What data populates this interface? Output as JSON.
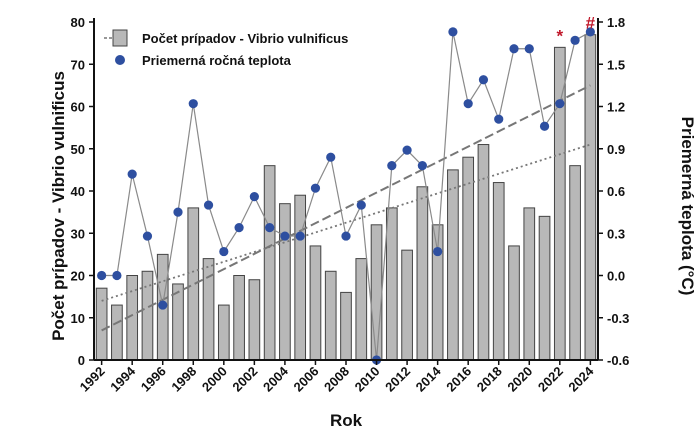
{
  "chart_data": {
    "type": "bar+line",
    "xlabel": "Rok",
    "y_left_label": "Počet prípadov - Vibrio vulnificus",
    "y_right_label": "Priemerná teplota (°C)",
    "y_left_lim": [
      0,
      80
    ],
    "y_left_ticks": [
      0,
      10,
      20,
      30,
      40,
      50,
      60,
      70,
      80
    ],
    "y_right_lim": [
      -0.6,
      1.8
    ],
    "y_right_ticks": [
      "-0.6",
      "-0.3",
      "0.0",
      "0.3",
      "0.6",
      "0.9",
      "1.2",
      "1.5",
      "1.8"
    ],
    "x_tick_labels": [
      "1992",
      "1994",
      "1996",
      "1998",
      "2000",
      "2002",
      "2004",
      "2006",
      "2008",
      "2010",
      "2012",
      "2014",
      "2016",
      "2018",
      "2020",
      "2022",
      "2024"
    ],
    "years": [
      1992,
      1993,
      1994,
      1995,
      1996,
      1997,
      1998,
      1999,
      2000,
      2001,
      2002,
      2003,
      2004,
      2005,
      2006,
      2007,
      2008,
      2009,
      2010,
      2011,
      2012,
      2013,
      2014,
      2015,
      2016,
      2017,
      2018,
      2019,
      2020,
      2021,
      2022,
      2023,
      2024
    ],
    "series": [
      {
        "name": "Počet prípadov - Vibrio vulnificus",
        "kind": "bar",
        "axis": "left",
        "color": "#b8b8b8",
        "values": [
          17,
          13,
          20,
          21,
          25,
          18,
          36,
          24,
          13,
          20,
          19,
          46,
          37,
          39,
          27,
          21,
          16,
          24,
          32,
          36,
          26,
          41,
          32,
          45,
          48,
          51,
          42,
          27,
          36,
          34,
          74,
          46,
          77
        ]
      },
      {
        "name": "Priemerná ročná teplota",
        "kind": "line",
        "axis": "right",
        "color": "#2e4fa0",
        "values": [
          0.0,
          0.0,
          0.72,
          0.28,
          -0.21,
          0.45,
          1.22,
          0.5,
          0.17,
          0.34,
          0.56,
          0.34,
          0.28,
          0.28,
          0.62,
          0.84,
          0.28,
          0.5,
          -0.6,
          0.78,
          0.89,
          0.78,
          0.17,
          1.73,
          1.22,
          1.39,
          1.11,
          1.61,
          1.61,
          1.06,
          1.22,
          1.67,
          1.73
        ]
      }
    ],
    "trendlines": [
      {
        "style": "dashed",
        "color": "#777777",
        "axis": "left",
        "from": [
          1992,
          7
        ],
        "to": [
          2024,
          65
        ]
      },
      {
        "style": "dotted",
        "color": "#777777",
        "axis": "left",
        "from": [
          1992,
          14
        ],
        "to": [
          2024,
          51
        ]
      }
    ],
    "annotations": [
      {
        "text": "*",
        "year": 2022,
        "color": "#c0182a"
      },
      {
        "text": "#",
        "year": 2024,
        "color": "#c0182a"
      }
    ],
    "legend_position": "top-left",
    "grid": false
  }
}
